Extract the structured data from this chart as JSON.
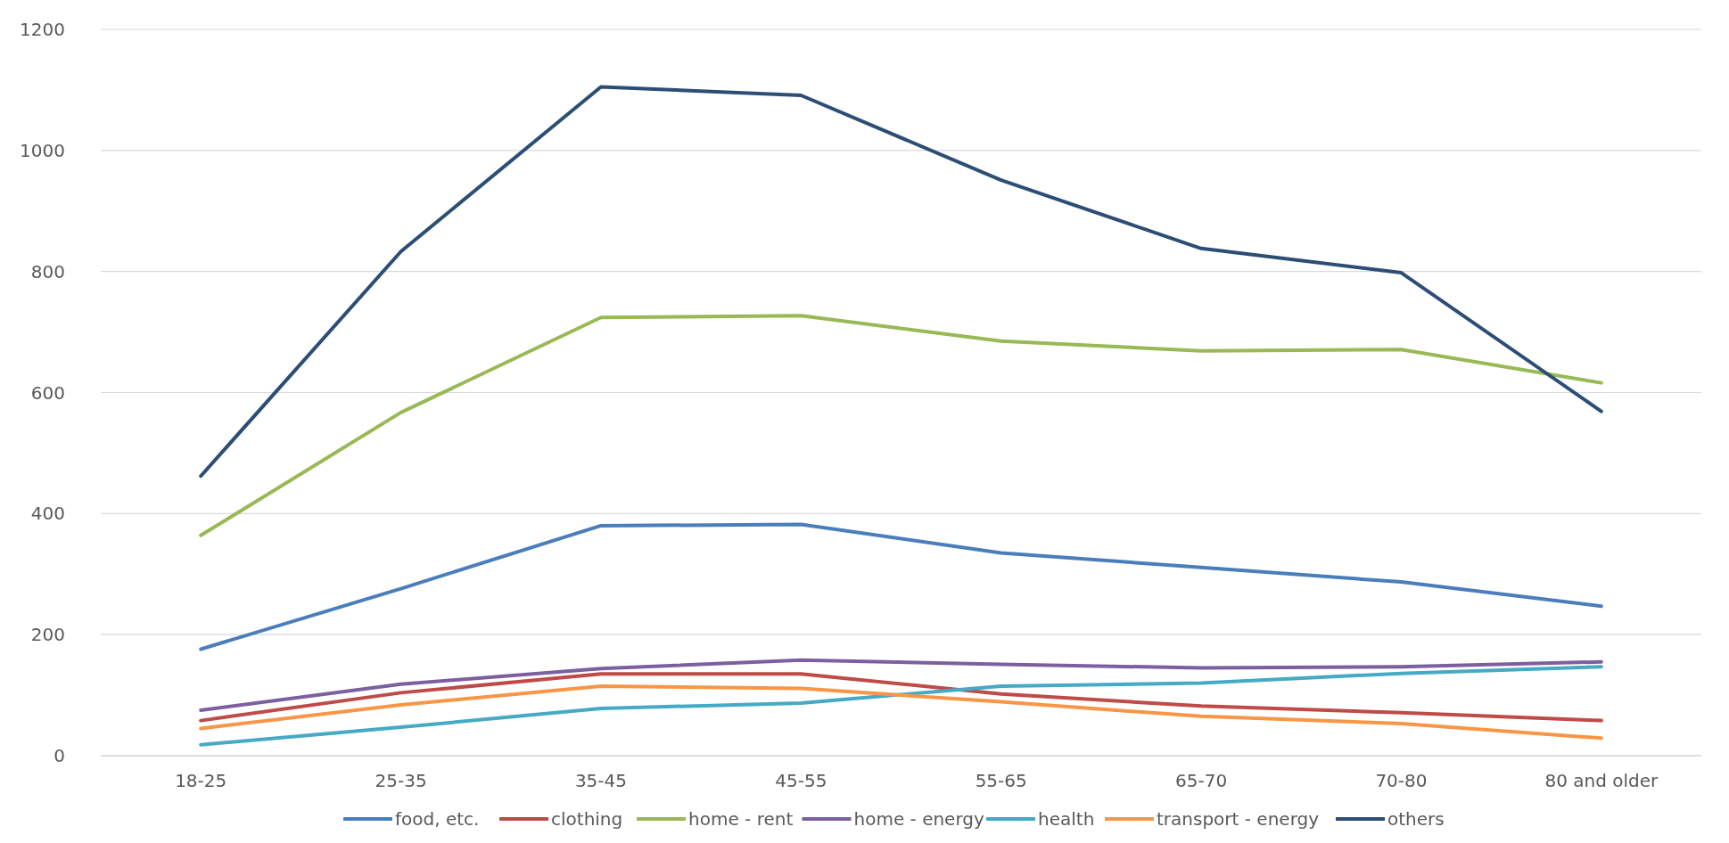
{
  "chart_data": {
    "type": "line",
    "categories": [
      "18-25",
      "25-35",
      "35-45",
      "45-55",
      "55-65",
      "65-70",
      "70-80",
      "80 and older"
    ],
    "series": [
      {
        "name": "food, etc.",
        "color": "#4a7ebb",
        "values": [
          176,
          276,
          380,
          382,
          335,
          311,
          287,
          247
        ]
      },
      {
        "name": "clothing",
        "color": "#be4b48",
        "values": [
          58,
          104,
          135,
          135,
          102,
          82,
          71,
          58
        ]
      },
      {
        "name": "home - rent",
        "color": "#98b954",
        "values": [
          364,
          567,
          724,
          727,
          685,
          669,
          671,
          616
        ]
      },
      {
        "name": "home - energy",
        "color": "#7d5fa0",
        "values": [
          75,
          118,
          144,
          158,
          151,
          145,
          147,
          155
        ]
      },
      {
        "name": "health",
        "color": "#46aac4",
        "values": [
          18,
          47,
          78,
          87,
          115,
          120,
          136,
          147
        ]
      },
      {
        "name": "transport - energy",
        "color": "#f79646",
        "values": [
          45,
          84,
          115,
          111,
          89,
          65,
          53,
          29
        ]
      },
      {
        "name": "others",
        "color": "#2c4d75",
        "values": [
          462,
          833,
          1105,
          1091,
          951,
          838,
          798,
          569
        ]
      }
    ],
    "ylim": [
      0,
      1200
    ],
    "yticks": [
      0,
      200,
      400,
      600,
      800,
      1000,
      1200
    ],
    "grid": "y",
    "legend": "bottom",
    "marker": "none",
    "line_style": "solid"
  }
}
